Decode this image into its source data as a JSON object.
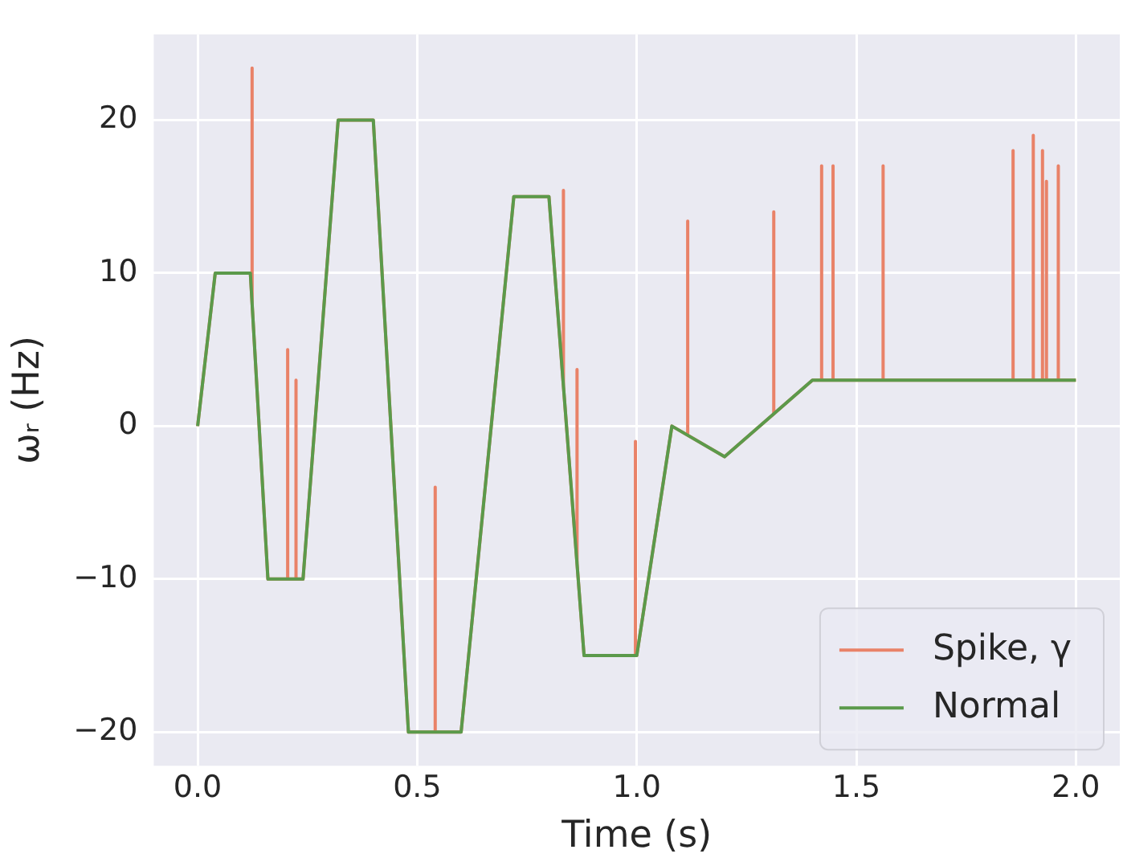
{
  "chart_data": {
    "type": "line",
    "xlabel": "Time (s)",
    "ylabel": "ωᵣ (Hz)",
    "xlim": [
      -0.1,
      2.1
    ],
    "ylim": [
      -22.2,
      25.6
    ],
    "xticks": [
      {
        "value": 0,
        "label": "0.0"
      },
      {
        "value": 0.5,
        "label": "0.5"
      },
      {
        "value": 1,
        "label": "1.0"
      },
      {
        "value": 1.5,
        "label": "1.5"
      },
      {
        "value": 2,
        "label": "2.0"
      }
    ],
    "yticks": [
      {
        "value": -20,
        "label": "−20"
      },
      {
        "value": -10,
        "label": "−10"
      },
      0,
      10,
      20
    ],
    "grid": true,
    "legend": "bottom right",
    "marker": "none",
    "line_style": "solid",
    "series": [
      {
        "name": "Spike, γ",
        "color": "#e98268",
        "x": [
          0,
          0.04,
          0.12,
          0.124,
          0.124,
          0.124,
          0.16,
          0.205,
          0.205,
          0.205,
          0.224,
          0.224,
          0.224,
          0.24,
          0.32,
          0.4,
          0.48,
          0.541,
          0.541,
          0.541,
          0.6,
          0.72,
          0.8,
          0.833,
          0.833,
          0.833,
          0.864,
          0.864,
          0.864,
          0.88,
          0.997,
          0.997,
          0.997,
          1.0,
          1.08,
          1.116,
          1.116,
          1.116,
          1.2,
          1.312,
          1.312,
          1.312,
          1.4,
          1.421,
          1.421,
          1.421,
          1.447,
          1.447,
          1.447,
          1.561,
          1.561,
          1.561,
          1.857,
          1.857,
          1.857,
          1.903,
          1.903,
          1.903,
          1.924,
          1.924,
          1.924,
          1.933,
          1.933,
          1.933,
          1.96,
          1.96,
          1.96,
          2.0
        ],
        "values": [
          0,
          10,
          10,
          8,
          23.4,
          8,
          -10,
          -10,
          5,
          -10,
          -10,
          3,
          -10,
          -10,
          20,
          20,
          -20,
          -20,
          -4,
          -20,
          -20,
          15,
          15,
          2.6,
          15.4,
          2.6,
          -9,
          3.7,
          -9,
          -15,
          -15,
          -1,
          -15,
          -15,
          0,
          -0.6,
          13.4,
          -0.6,
          -2,
          0.8,
          14,
          0.8,
          3,
          3,
          17,
          3,
          3,
          17,
          3,
          3,
          17,
          3,
          3,
          18,
          3,
          3,
          19,
          3,
          3,
          18,
          3,
          3,
          16,
          3,
          3,
          17,
          3,
          3
        ]
      },
      {
        "name": "Normal",
        "color": "#5b9a4b",
        "x": [
          0,
          0.04,
          0.12,
          0.16,
          0.24,
          0.32,
          0.4,
          0.48,
          0.6,
          0.72,
          0.8,
          0.88,
          1.0,
          1.08,
          1.2,
          1.4,
          2.0
        ],
        "values": [
          0,
          10,
          10,
          -10,
          -10,
          20,
          20,
          -20,
          -20,
          15,
          15,
          -15,
          -15,
          0,
          -2,
          3,
          3
        ]
      }
    ]
  }
}
